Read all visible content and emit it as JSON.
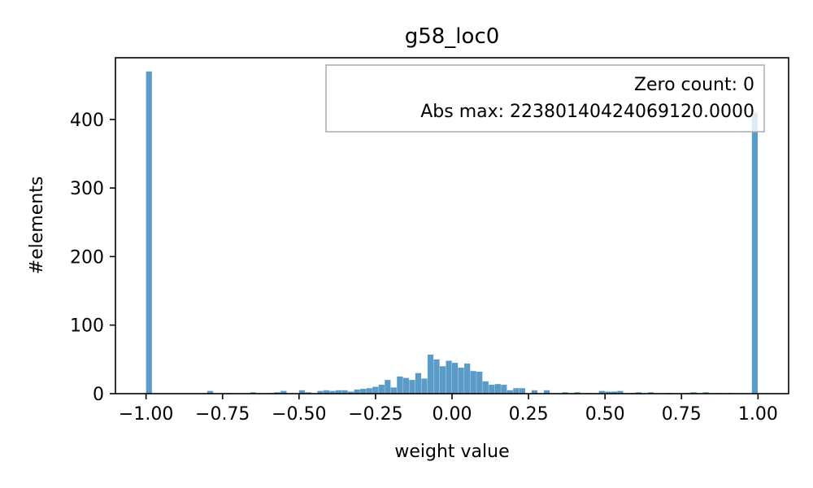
{
  "chart_data": {
    "type": "bar",
    "title": "g58_loc0",
    "xlabel": "weight value",
    "ylabel": "#elements",
    "xlim": [
      -1.1,
      1.1
    ],
    "ylim": [
      0,
      490
    ],
    "xticks": [
      -1.0,
      -0.75,
      -0.5,
      -0.25,
      0.0,
      0.25,
      0.5,
      0.75,
      1.0
    ],
    "xtick_labels": [
      "−1.00",
      "−0.75",
      "−0.50",
      "−0.25",
      "0.00",
      "0.25",
      "0.50",
      "0.75",
      "1.00"
    ],
    "yticks": [
      0,
      100,
      200,
      300,
      400
    ],
    "ytick_labels": [
      "0",
      "100",
      "200",
      "300",
      "400"
    ],
    "bar_color": "#5a9bc8",
    "bin_width": 0.02,
    "bins": [
      {
        "x": -0.99,
        "count": 470
      },
      {
        "x": -0.79,
        "count": 4
      },
      {
        "x": -0.73,
        "count": 1
      },
      {
        "x": -0.65,
        "count": 2
      },
      {
        "x": -0.59,
        "count": 1
      },
      {
        "x": -0.57,
        "count": 2
      },
      {
        "x": -0.55,
        "count": 4
      },
      {
        "x": -0.49,
        "count": 5
      },
      {
        "x": -0.47,
        "count": 2
      },
      {
        "x": -0.43,
        "count": 4
      },
      {
        "x": -0.41,
        "count": 5
      },
      {
        "x": -0.39,
        "count": 4
      },
      {
        "x": -0.37,
        "count": 5
      },
      {
        "x": -0.35,
        "count": 5
      },
      {
        "x": -0.33,
        "count": 3
      },
      {
        "x": -0.31,
        "count": 6
      },
      {
        "x": -0.29,
        "count": 7
      },
      {
        "x": -0.27,
        "count": 8
      },
      {
        "x": -0.25,
        "count": 10
      },
      {
        "x": -0.23,
        "count": 13
      },
      {
        "x": -0.21,
        "count": 20
      },
      {
        "x": -0.19,
        "count": 9
      },
      {
        "x": -0.17,
        "count": 25
      },
      {
        "x": -0.15,
        "count": 23
      },
      {
        "x": -0.13,
        "count": 20
      },
      {
        "x": -0.11,
        "count": 30
      },
      {
        "x": -0.09,
        "count": 22
      },
      {
        "x": -0.07,
        "count": 57
      },
      {
        "x": -0.05,
        "count": 50
      },
      {
        "x": -0.03,
        "count": 40
      },
      {
        "x": -0.01,
        "count": 48
      },
      {
        "x": 0.01,
        "count": 45
      },
      {
        "x": 0.03,
        "count": 38
      },
      {
        "x": 0.05,
        "count": 44
      },
      {
        "x": 0.07,
        "count": 33
      },
      {
        "x": 0.09,
        "count": 32
      },
      {
        "x": 0.11,
        "count": 18
      },
      {
        "x": 0.13,
        "count": 13
      },
      {
        "x": 0.15,
        "count": 14
      },
      {
        "x": 0.17,
        "count": 13
      },
      {
        "x": 0.19,
        "count": 5
      },
      {
        "x": 0.21,
        "count": 8
      },
      {
        "x": 0.23,
        "count": 8
      },
      {
        "x": 0.27,
        "count": 5
      },
      {
        "x": 0.31,
        "count": 5
      },
      {
        "x": 0.37,
        "count": 2
      },
      {
        "x": 0.41,
        "count": 2
      },
      {
        "x": 0.45,
        "count": 1
      },
      {
        "x": 0.49,
        "count": 4
      },
      {
        "x": 0.51,
        "count": 3
      },
      {
        "x": 0.53,
        "count": 3
      },
      {
        "x": 0.55,
        "count": 4
      },
      {
        "x": 0.59,
        "count": 1
      },
      {
        "x": 0.61,
        "count": 2
      },
      {
        "x": 0.65,
        "count": 2
      },
      {
        "x": 0.71,
        "count": 1
      },
      {
        "x": 0.77,
        "count": 1
      },
      {
        "x": 0.79,
        "count": 2
      },
      {
        "x": 0.83,
        "count": 2
      },
      {
        "x": 0.87,
        "count": 1
      },
      {
        "x": 0.91,
        "count": 1
      },
      {
        "x": 0.99,
        "count": 410
      }
    ],
    "legend": {
      "placement": "top-right",
      "lines": [
        "Zero count: 0",
        "Abs max: 22380140424069120.0000"
      ]
    }
  }
}
